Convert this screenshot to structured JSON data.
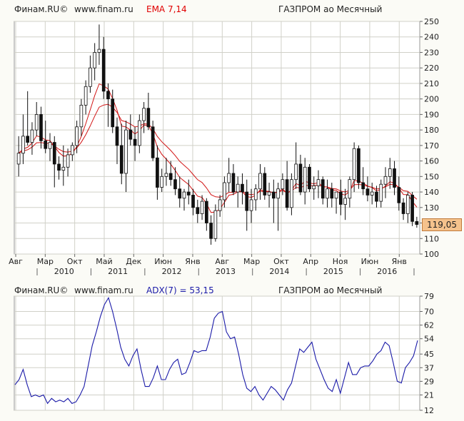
{
  "top_panel": {
    "source": "Финам.RU©",
    "site": "www.finam.ru",
    "indicator": "EMA 7,14",
    "instrument": "ГАЗПРОМ ао Месячный",
    "last_price": "119,05"
  },
  "bottom_panel": {
    "source": "Финам.RU©",
    "site": "www.finam.ru",
    "indicator": "ADX(7) = 53,15",
    "instrument": "ГАЗПРОМ ао Месячный"
  },
  "colors": {
    "ema": "#d21515",
    "adx": "#1a1aa8",
    "candle_up": "#ffffff",
    "candle_down": "#111111",
    "grid": "#d0d0c8",
    "plot_bg": "#ffffff"
  },
  "chart_data": [
    {
      "type": "candlestick",
      "title": "ГАЗПРОМ ао Месячный",
      "indicator": "EMA 7,14",
      "ylim": [
        100,
        250
      ],
      "yticks": [
        100,
        110,
        120,
        130,
        140,
        150,
        160,
        170,
        180,
        190,
        200,
        210,
        220,
        230,
        240,
        250
      ],
      "month_labels": [
        "Авг",
        "Мар",
        "Окт",
        "Май",
        "Дек",
        "Июн",
        "Янв",
        "Авг",
        "Мар",
        "Окт",
        "Апр",
        "Ноя",
        "Июн",
        "Янв"
      ],
      "year_labels": [
        "2010",
        "2011",
        "2012",
        "2013",
        "2014",
        "2015",
        "2016"
      ],
      "grid": true,
      "last_value": 119.05,
      "ohlc": [
        [
          158,
          176,
          150,
          165
        ],
        [
          165,
          190,
          158,
          176
        ],
        [
          176,
          205,
          170,
          172
        ],
        [
          172,
          185,
          164,
          180
        ],
        [
          180,
          198,
          176,
          190
        ],
        [
          190,
          195,
          168,
          173
        ],
        [
          173,
          186,
          165,
          168
        ],
        [
          168,
          178,
          160,
          172
        ],
        [
          172,
          176,
          143,
          158
        ],
        [
          158,
          163,
          148,
          154
        ],
        [
          154,
          170,
          144,
          156
        ],
        [
          156,
          168,
          150,
          164
        ],
        [
          164,
          172,
          160,
          170
        ],
        [
          170,
          186,
          165,
          182
        ],
        [
          182,
          200,
          176,
          196
        ],
        [
          196,
          212,
          190,
          208
        ],
        [
          208,
          228,
          204,
          220
        ],
        [
          220,
          236,
          212,
          230
        ],
        [
          230,
          248,
          222,
          232
        ],
        [
          232,
          240,
          200,
          205
        ],
        [
          205,
          210,
          182,
          200
        ],
        [
          200,
          206,
          178,
          182
        ],
        [
          182,
          188,
          158,
          170
        ],
        [
          170,
          184,
          145,
          152
        ],
        [
          152,
          186,
          140,
          180
        ],
        [
          180,
          190,
          170,
          174
        ],
        [
          174,
          182,
          160,
          170
        ],
        [
          170,
          190,
          165,
          186
        ],
        [
          186,
          198,
          178,
          194
        ],
        [
          194,
          204,
          180,
          182
        ],
        [
          182,
          186,
          160,
          162
        ],
        [
          162,
          170,
          135,
          143
        ],
        [
          143,
          155,
          140,
          150
        ],
        [
          150,
          162,
          144,
          152
        ],
        [
          152,
          160,
          144,
          148
        ],
        [
          148,
          156,
          138,
          142
        ],
        [
          142,
          150,
          130,
          136
        ],
        [
          136,
          142,
          128,
          140
        ],
        [
          140,
          148,
          132,
          138
        ],
        [
          138,
          142,
          125,
          130
        ],
        [
          130,
          135,
          120,
          126
        ],
        [
          126,
          138,
          122,
          134
        ],
        [
          134,
          136,
          115,
          120
        ],
        [
          120,
          125,
          106,
          110
        ],
        [
          110,
          132,
          108,
          128
        ],
        [
          128,
          138,
          124,
          135
        ],
        [
          135,
          150,
          130,
          146
        ],
        [
          146,
          162,
          140,
          152
        ],
        [
          152,
          158,
          138,
          140
        ],
        [
          140,
          150,
          130,
          145
        ],
        [
          145,
          152,
          132,
          140
        ],
        [
          140,
          148,
          115,
          128
        ],
        [
          128,
          142,
          120,
          135
        ],
        [
          135,
          145,
          128,
          142
        ],
        [
          142,
          158,
          135,
          152
        ],
        [
          152,
          156,
          135,
          138
        ],
        [
          138,
          146,
          130,
          140
        ],
        [
          140,
          148,
          120,
          136
        ],
        [
          136,
          146,
          115,
          142
        ],
        [
          142,
          152,
          138,
          148
        ],
        [
          148,
          160,
          128,
          130
        ],
        [
          130,
          152,
          125,
          148
        ],
        [
          148,
          172,
          142,
          158
        ],
        [
          158,
          164,
          138,
          140
        ],
        [
          140,
          162,
          132,
          156
        ],
        [
          156,
          158,
          140,
          142
        ],
        [
          142,
          150,
          135,
          144
        ],
        [
          144,
          154,
          136,
          148
        ],
        [
          148,
          150,
          132,
          136
        ],
        [
          136,
          148,
          130,
          142
        ],
        [
          142,
          146,
          130,
          136
        ],
        [
          136,
          140,
          126,
          140
        ],
        [
          140,
          148,
          125,
          132
        ],
        [
          132,
          142,
          122,
          136
        ],
        [
          136,
          150,
          130,
          148
        ],
        [
          148,
          172,
          140,
          168
        ],
        [
          168,
          170,
          142,
          146
        ],
        [
          146,
          156,
          138,
          142
        ],
        [
          142,
          150,
          134,
          138
        ],
        [
          138,
          146,
          132,
          140
        ],
        [
          140,
          144,
          130,
          134
        ],
        [
          134,
          148,
          130,
          145
        ],
        [
          145,
          156,
          136,
          150
        ],
        [
          150,
          162,
          142,
          155
        ],
        [
          155,
          160,
          138,
          143
        ],
        [
          143,
          150,
          128,
          133
        ],
        [
          133,
          136,
          122,
          126
        ],
        [
          126,
          140,
          120,
          138
        ],
        [
          138,
          140,
          118,
          121
        ],
        [
          121,
          124,
          117,
          119.05
        ]
      ]
    },
    {
      "type": "line",
      "title": "ГАЗПРОМ ао Месячный",
      "indicator": "ADX(7) = 53,15",
      "ylim": [
        12,
        79
      ],
      "yticks": [
        12,
        21,
        29,
        37,
        45,
        54,
        62,
        70,
        79
      ],
      "grid": true,
      "last_value": 53.15,
      "values": [
        27,
        30,
        36,
        27,
        20,
        21,
        20,
        21,
        16,
        19,
        17,
        18,
        17,
        19,
        16,
        17,
        21,
        26,
        38,
        50,
        58,
        67,
        74,
        78,
        70,
        60,
        49,
        42,
        38,
        44,
        48,
        36,
        26,
        26,
        31,
        38,
        30,
        30,
        36,
        40,
        42,
        33,
        34,
        40,
        47,
        46,
        47,
        47,
        55,
        66,
        69,
        70,
        58,
        54,
        55,
        45,
        33,
        25,
        23,
        26,
        21,
        18,
        22,
        26,
        24,
        21,
        18,
        24,
        28,
        38,
        48,
        46,
        49,
        52,
        42,
        36,
        30,
        25,
        23,
        30,
        22,
        31,
        40,
        33,
        33,
        37,
        38,
        38,
        41,
        45,
        47,
        52,
        50,
        40,
        29,
        28,
        37,
        40,
        44,
        53
      ]
    }
  ]
}
